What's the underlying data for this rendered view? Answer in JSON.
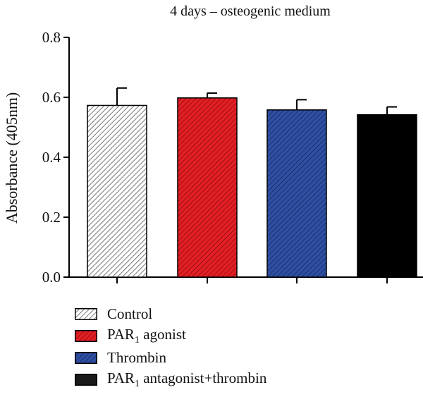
{
  "chart_data": {
    "type": "bar",
    "title": "4 days – osteogenic medium",
    "ylabel": "Absorbance (405nm)",
    "xlabel": "",
    "ylim": [
      0,
      0.8
    ],
    "yticks": [
      "0.0",
      "0.2",
      "0.4",
      "0.6",
      "0.8"
    ],
    "grid": false,
    "legend_position": "bottom-left",
    "categories": [
      "Control",
      "PAR1 agonist",
      "Thrombin",
      "PAR1 antagonist+thrombin"
    ],
    "values": [
      0.573,
      0.598,
      0.558,
      0.542
    ],
    "errors": [
      0.058,
      0.016,
      0.034,
      0.026
    ],
    "colors": [
      "#ffffff",
      "#e31e24",
      "#2e4fa3",
      "#000000"
    ],
    "patterns": [
      "hatch",
      "hatch",
      "hatch",
      "solid"
    ]
  },
  "legend": [
    {
      "pre": "PAR",
      "sub": "",
      "post": "",
      "text": "Control"
    },
    {
      "pre": "PAR",
      "sub": "1",
      "post": " agonist"
    },
    {
      "text": "Thrombin"
    },
    {
      "pre": "PAR",
      "sub": "1",
      "post": " antagonist+thrombin"
    }
  ]
}
